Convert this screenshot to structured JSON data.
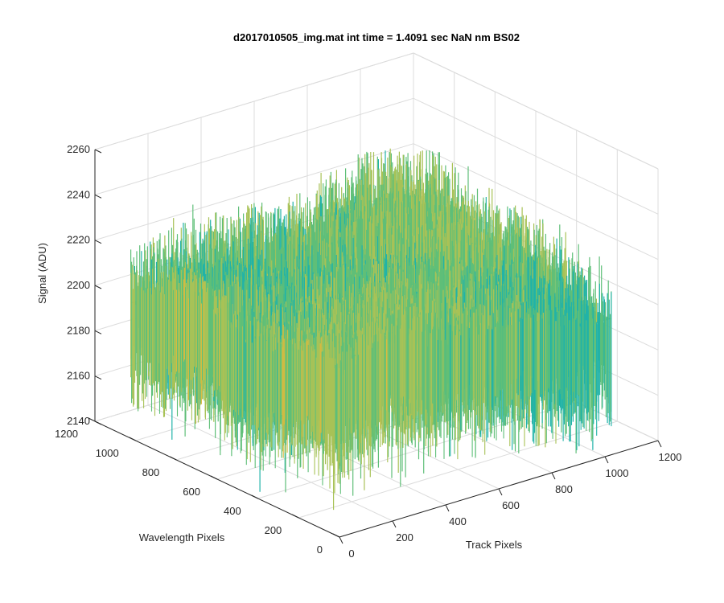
{
  "chart_data": {
    "type": "surface3d",
    "title": "d2017010505_img.mat int time = 1.4091 sec  NaN nm BS02",
    "xlabel": "Track Pixels",
    "ylabel": "Wavelength Pixels",
    "zlabel": "Signal (ADU)",
    "xlim": [
      0,
      1200
    ],
    "ylim": [
      0,
      1200
    ],
    "zlim": [
      2140,
      2260
    ],
    "xticks": [
      0,
      200,
      400,
      600,
      800,
      1000,
      1200
    ],
    "yticks": [
      0,
      200,
      400,
      600,
      800,
      1000,
      1200
    ],
    "zticks": [
      2140,
      2160,
      2180,
      2200,
      2220,
      2240,
      2260
    ],
    "xtick_labels": [
      "0",
      "200",
      "400",
      "600",
      "800",
      "1000",
      "1200"
    ],
    "ytick_labels": [
      "0",
      "200",
      "400",
      "600",
      "800",
      "1000",
      "1200"
    ],
    "ztick_labels": [
      "2140",
      "2160",
      "2180",
      "2200",
      "2220",
      "2240",
      "2260"
    ],
    "grid": true,
    "surface": {
      "x_range": [
        0,
        1024
      ],
      "y_range": [
        0,
        1024
      ],
      "z_mean": 2200,
      "z_min_approx": 2155,
      "z_max_approx": 2240,
      "colormap": [
        "#0f9ec5",
        "#21b3a8",
        "#5fbf78",
        "#a8c257",
        "#d9ba3f"
      ]
    }
  }
}
